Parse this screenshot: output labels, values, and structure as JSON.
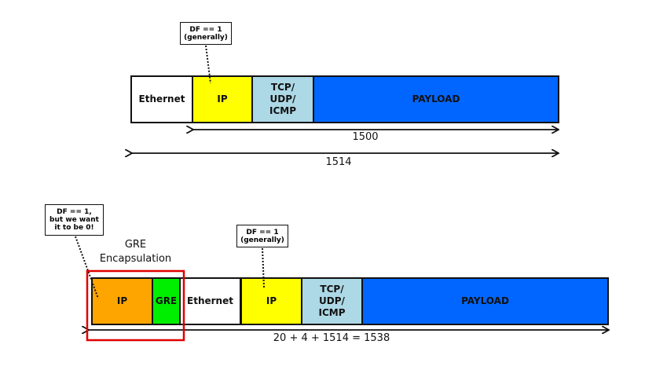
{
  "top_frame": {
    "segments": {
      "ethernet": "Ethernet",
      "ip": "IP",
      "tcp": "TCP/\nUDP/\nICMP",
      "payload": "PAYLOAD"
    },
    "callout": "DF == 1\n(generally)",
    "dim_1500": "1500",
    "dim_1514": "1514"
  },
  "bottom_frame": {
    "segments": {
      "outer_ip": "IP",
      "gre": "GRE",
      "ethernet": "Ethernet",
      "ip": "IP",
      "tcp": "TCP/\nUDP/\nICMP",
      "payload": "PAYLOAD"
    },
    "callout_outer": "DF == 1,\nbut we want\nit to be 0!",
    "callout_inner": "DF == 1\n(generally)",
    "encap_label": "GRE\nEncapsulation",
    "total_label": "20 + 4 + 1514 = 1538"
  },
  "colors": {
    "ethernet": "#ffffff",
    "ip": "#ffff00",
    "tcp": "#add8e6",
    "payload": "#0066ff",
    "outer_ip": "#ffa500",
    "gre": "#00ee00",
    "encap_box": "#e00000"
  }
}
